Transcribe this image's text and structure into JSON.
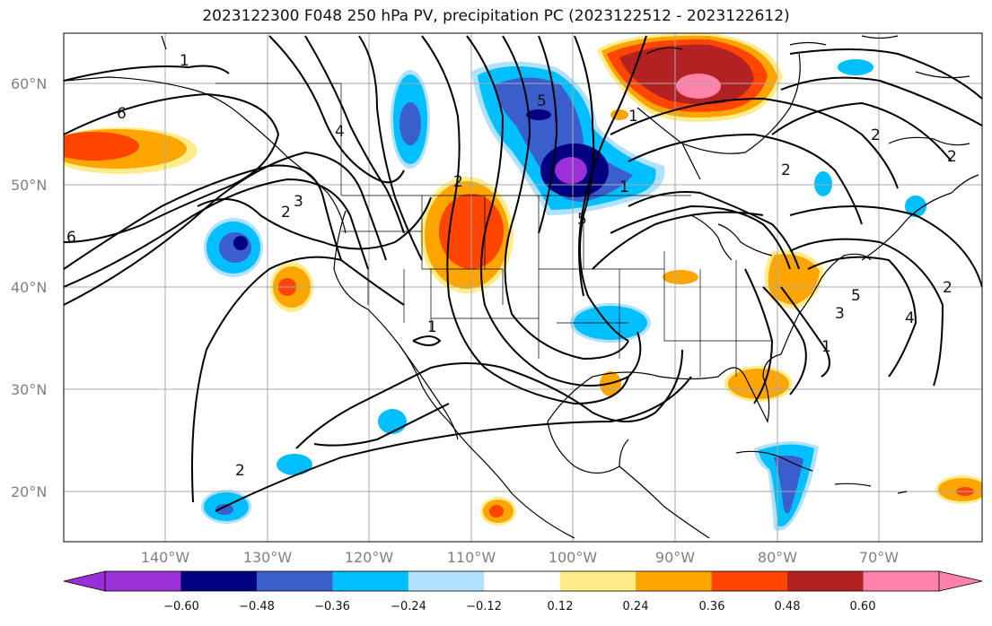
{
  "title": "2023122300 F048 250 hPa PV, precipitation PC (2023122512 - 2023122612)",
  "lat_labels": [
    "60°N",
    "50°N",
    "40°N",
    "30°N",
    "20°N"
  ],
  "lon_labels": [
    "140°W",
    "130°W",
    "120°W",
    "110°W",
    "100°W",
    "90°W",
    "80°W",
    "70°W"
  ],
  "colorbar": {
    "ticks": [
      "−0.60",
      "−0.48",
      "−0.36",
      "−0.24",
      "−0.12",
      "0.12",
      "0.24",
      "0.36",
      "0.48",
      "0.60"
    ],
    "colors": [
      "#9b30d8",
      "#000080",
      "#3a5fcd",
      "#00bfff",
      "#b0e2ff",
      "#ffffff",
      "#ffec8b",
      "#ffa500",
      "#ff4500",
      "#b22222",
      "#ff82ab"
    ]
  },
  "contour_labels": [
    "1",
    "6",
    "6",
    "2",
    "3",
    "2",
    "1",
    "2",
    "5",
    "5",
    "1",
    "2",
    "5",
    "3",
    "1",
    "4",
    "2",
    "2",
    "2",
    "4",
    "1"
  ],
  "map_extent": {
    "lon": [
      -150,
      -60
    ],
    "lat": [
      15,
      65
    ]
  }
}
